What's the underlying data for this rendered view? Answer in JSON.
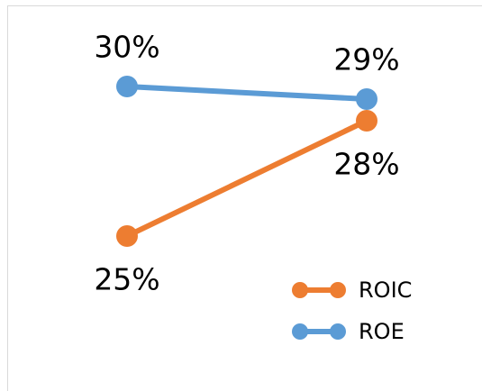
{
  "chart_data": {
    "type": "line",
    "categories": [
      null,
      null
    ],
    "series": [
      {
        "name": "ROIC",
        "color": "#ed7d31",
        "values": [
          25,
          28
        ],
        "value_labels": [
          "25%",
          "28%"
        ]
      },
      {
        "name": "ROE",
        "color": "#5b9bd5",
        "values": [
          30,
          29
        ],
        "value_labels": [
          "30%",
          "29%"
        ]
      }
    ],
    "legend": "bottom-right"
  }
}
